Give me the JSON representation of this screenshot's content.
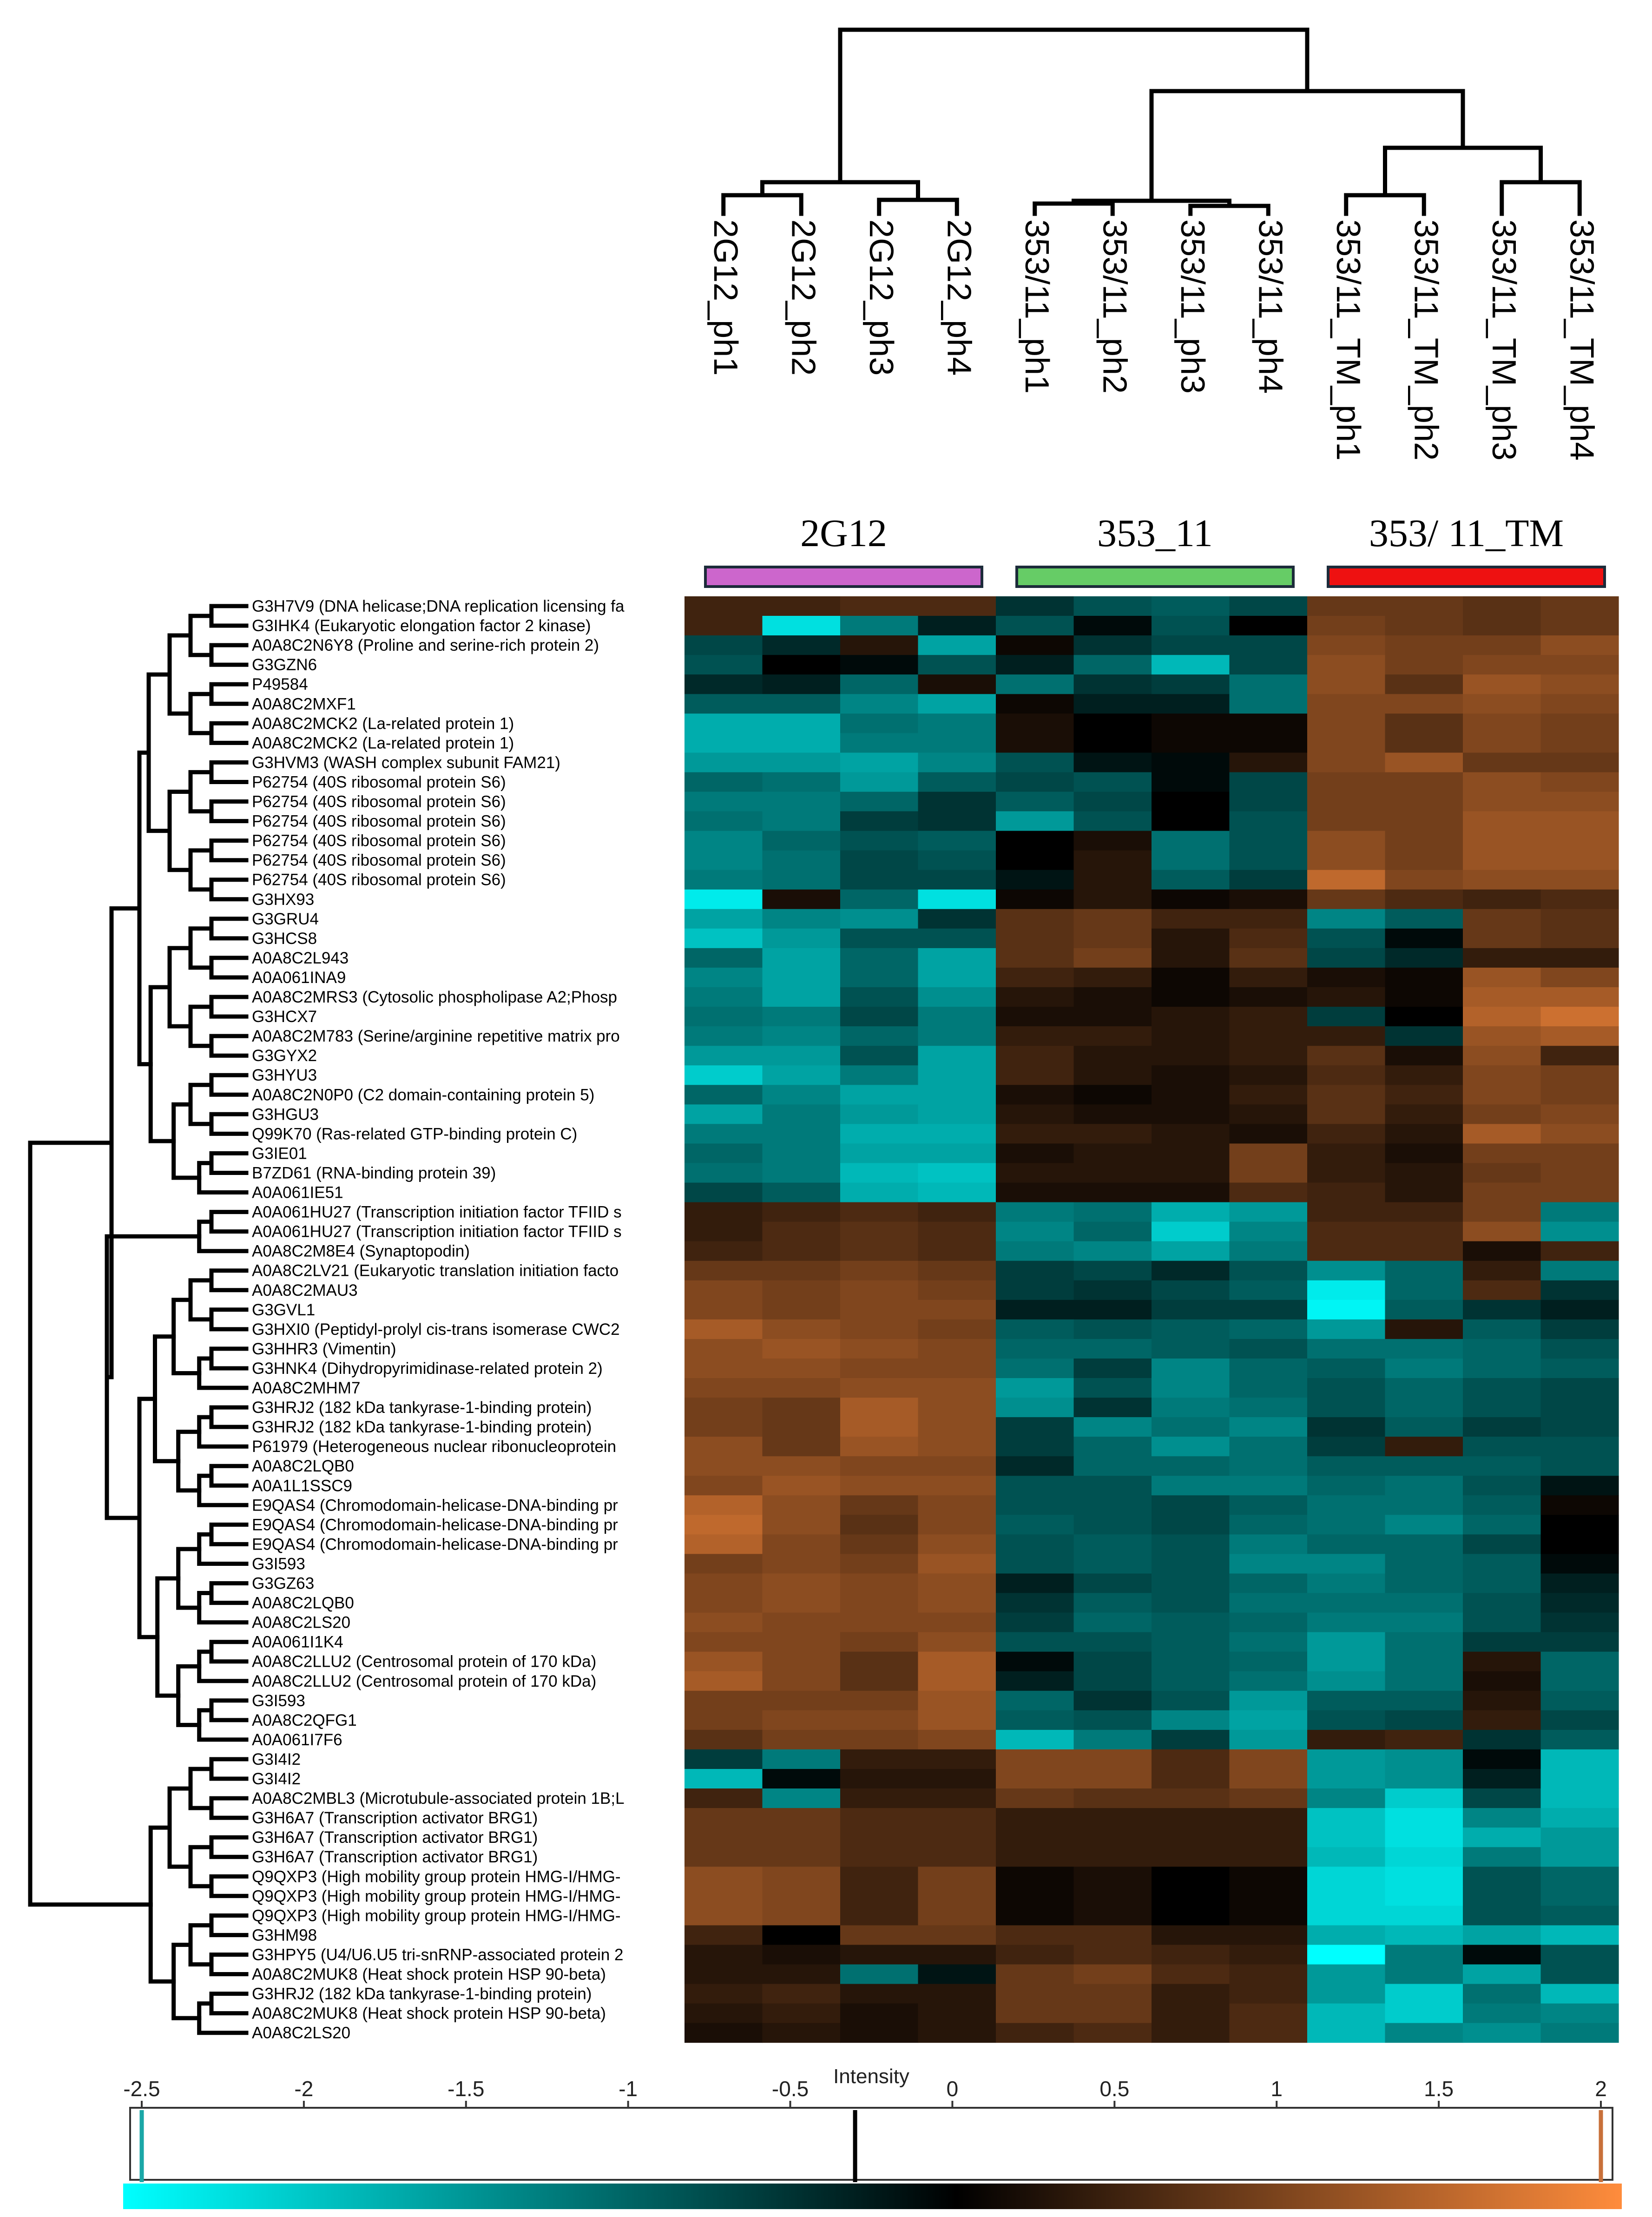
{
  "chart_data": {
    "type": "heatmap",
    "columns": [
      "2G12_ph1",
      "2G12_ph2",
      "2G12_ph3",
      "2G12_ph4",
      "353/11_ph1",
      "353/11_ph2",
      "353/11_ph3",
      "353/11_ph4",
      "353/11_TM_ph1",
      "353/11_TM_ph2",
      "353/11_TM_ph3",
      "353/11_TM_ph4"
    ],
    "groups": [
      {
        "label": "2G12",
        "color": "#cc66cc",
        "span": [
          0,
          3
        ]
      },
      {
        "label": "353_11",
        "color": "#66cc66",
        "span": [
          4,
          7
        ]
      },
      {
        "label": "353/ 11_TM",
        "color": "#ee1111",
        "span": [
          8,
          11
        ]
      }
    ],
    "rows": [
      "G3H7V9 (DNA helicase;DNA replication licensing fa",
      "G3IHK4 (Eukaryotic elongation factor 2 kinase)",
      "A0A8C2N6Y8 (Proline and serine-rich protein 2)",
      "G3GZN6",
      "P49584",
      "A0A8C2MXF1",
      "A0A8C2MCK2 (La-related protein 1)",
      "A0A8C2MCK2 (La-related protein 1)",
      "G3HVM3 (WASH complex subunit FAM21)",
      "P62754 (40S ribosomal protein S6)",
      "P62754 (40S ribosomal protein S6)",
      "P62754 (40S ribosomal protein S6)",
      "P62754 (40S ribosomal protein S6)",
      "P62754 (40S ribosomal protein S6)",
      "P62754 (40S ribosomal protein S6)",
      "G3HX93",
      "G3GRU4",
      "G3HCS8",
      "A0A8C2L943",
      "A0A061INA9",
      "A0A8C2MRS3 (Cytosolic phospholipase A2;Phosp",
      "G3HCX7",
      "A0A8C2M783 (Serine/arginine repetitive matrix pro",
      "G3GYX2",
      "G3HYU3",
      "A0A8C2N0P0 (C2 domain-containing protein 5)",
      "G3HGU3",
      "Q99K70 (Ras-related GTP-binding protein C)",
      "G3IE01",
      "B7ZD61 (RNA-binding protein 39)",
      "A0A061IE51",
      "A0A061HU27 (Transcription initiation factor TFIID s",
      "A0A061HU27 (Transcription initiation factor TFIID s",
      "A0A8C2M8E4 (Synaptopodin)",
      "A0A8C2LV21 (Eukaryotic translation initiation facto",
      "A0A8C2MAU3",
      "G3GVL1",
      "G3HXI0 (Peptidyl-prolyl cis-trans isomerase CWC2",
      "G3HHR3 (Vimentin)",
      "G3HNK4 (Dihydropyrimidinase-related protein 2)",
      "A0A8C2MHM7",
      "G3HRJ2 (182 kDa tankyrase-1-binding protein)",
      "G3HRJ2 (182 kDa tankyrase-1-binding protein)",
      "P61979 (Heterogeneous nuclear ribonucleoprotein",
      "A0A8C2LQB0",
      "A0A1L1SSC9",
      "E9QAS4 (Chromodomain-helicase-DNA-binding pr",
      "E9QAS4 (Chromodomain-helicase-DNA-binding pr",
      "E9QAS4 (Chromodomain-helicase-DNA-binding pr",
      "G3I593",
      "G3GZ63",
      "A0A8C2LQB0",
      "A0A8C2LS20",
      "A0A061I1K4",
      "A0A8C2LLU2 (Centrosomal protein of 170 kDa)",
      "A0A8C2LLU2 (Centrosomal protein of 170 kDa)",
      "G3I593",
      "A0A8C2QFG1",
      "A0A061I7F6",
      "G3I4I2",
      "G3I4I2",
      "A0A8C2MBL3 (Microtubule-associated protein 1B;L",
      "G3H6A7 (Transcription activator BRG1)",
      "G3H6A7 (Transcription activator BRG1)",
      "G3H6A7 (Transcription activator BRG1)",
      "Q9QXP3 (High mobility group protein HMG-I/HMG-",
      "Q9QXP3 (High mobility group protein HMG-I/HMG-",
      "Q9QXP3 (High mobility group protein HMG-I/HMG-",
      "G3HM98",
      "G3HPY5 (U4/U6.U5 tri-snRNP-associated protein 2",
      "A0A8C2MUK8 (Heat shock protein HSP 90-beta)",
      "G3HRJ2 (182 kDa tankyrase-1-binding protein)",
      "A0A8C2MUK8 (Heat shock protein HSP 90-beta)",
      "A0A8C2LS20"
    ],
    "values": [
      [
        0.5,
        0.5,
        0.6,
        0.6,
        -0.5,
        -0.8,
        -0.9,
        -0.7,
        0.8,
        0.8,
        0.7,
        0.8
      ],
      [
        0.5,
        -2.2,
        -1.2,
        -0.3,
        -0.8,
        -0.1,
        -0.8,
        0.0,
        0.9,
        0.8,
        0.7,
        0.8
      ],
      [
        -0.7,
        -0.4,
        0.3,
        -1.6,
        0.1,
        -0.5,
        -0.7,
        -0.7,
        1.0,
        0.9,
        0.9,
        1.1
      ],
      [
        -0.8,
        0.0,
        -0.1,
        -0.8,
        -0.3,
        -1.0,
        -1.8,
        -0.7,
        1.1,
        0.9,
        1.0,
        1.0
      ],
      [
        -0.4,
        -0.3,
        -1.0,
        0.2,
        -1.1,
        -0.5,
        -0.6,
        -1.1,
        1.1,
        0.7,
        1.2,
        1.1
      ],
      [
        -0.9,
        -0.9,
        -1.3,
        -1.6,
        0.1,
        -0.3,
        -0.3,
        -1.1,
        1.0,
        1.0,
        1.1,
        1.0
      ],
      [
        -1.7,
        -1.7,
        -1.1,
        -1.2,
        0.2,
        0.0,
        0.1,
        0.1,
        1.0,
        0.7,
        1.0,
        0.9
      ],
      [
        -1.7,
        -1.7,
        -1.2,
        -1.2,
        0.2,
        0.0,
        0.1,
        0.1,
        1.0,
        0.7,
        1.0,
        0.9
      ],
      [
        -1.5,
        -1.5,
        -1.6,
        -1.3,
        -0.8,
        -0.2,
        -0.1,
        0.3,
        1.0,
        1.2,
        0.8,
        0.8
      ],
      [
        -1.0,
        -1.1,
        -1.5,
        -0.9,
        -0.7,
        -0.8,
        -0.1,
        -0.7,
        0.9,
        0.9,
        1.1,
        1.0
      ],
      [
        -1.2,
        -1.2,
        -1.0,
        -0.5,
        -0.9,
        -0.7,
        0.0,
        -0.7,
        0.9,
        0.9,
        1.1,
        1.1
      ],
      [
        -1.1,
        -1.2,
        -0.6,
        -0.5,
        -1.5,
        -0.8,
        0.0,
        -0.8,
        0.9,
        0.9,
        1.2,
        1.2
      ],
      [
        -1.3,
        -1.0,
        -0.8,
        -0.9,
        0.0,
        0.2,
        -1.1,
        -0.8,
        1.1,
        0.9,
        1.2,
        1.2
      ],
      [
        -1.3,
        -1.1,
        -0.7,
        -0.8,
        0.0,
        0.3,
        -1.1,
        -0.8,
        1.1,
        0.9,
        1.2,
        1.2
      ],
      [
        -1.2,
        -1.1,
        -0.7,
        -0.7,
        -0.2,
        0.3,
        -0.9,
        -0.6,
        1.5,
        1.0,
        1.1,
        1.1
      ],
      [
        -2.3,
        0.2,
        -1.0,
        -2.2,
        0.1,
        0.3,
        0.1,
        0.2,
        0.8,
        0.6,
        0.5,
        0.6
      ],
      [
        -1.6,
        -1.3,
        -1.4,
        -0.5,
        0.7,
        0.8,
        0.5,
        0.5,
        -1.3,
        -0.9,
        0.8,
        0.7
      ],
      [
        -1.9,
        -1.5,
        -0.8,
        -0.8,
        0.7,
        0.8,
        0.3,
        0.6,
        -0.8,
        -0.1,
        0.8,
        0.7
      ],
      [
        -1.0,
        -1.6,
        -1.0,
        -1.6,
        0.7,
        0.9,
        0.3,
        0.7,
        -0.7,
        -0.4,
        0.4,
        0.4
      ],
      [
        -1.3,
        -1.6,
        -1.0,
        -1.6,
        0.5,
        0.4,
        0.1,
        0.4,
        0.2,
        0.1,
        1.2,
        1.0
      ],
      [
        -1.2,
        -1.6,
        -0.8,
        -1.4,
        0.3,
        0.2,
        0.1,
        0.2,
        0.3,
        0.1,
        1.3,
        1.3
      ],
      [
        -1.1,
        -1.2,
        -0.7,
        -1.2,
        0.2,
        0.2,
        0.3,
        0.4,
        -0.6,
        0.0,
        1.4,
        1.6
      ],
      [
        -1.2,
        -1.3,
        -1.0,
        -1.2,
        0.4,
        0.4,
        0.3,
        0.4,
        0.4,
        -0.5,
        1.2,
        1.3
      ],
      [
        -1.5,
        -1.5,
        -0.8,
        -1.6,
        0.5,
        0.3,
        0.3,
        0.4,
        0.7,
        0.2,
        1.1,
        0.5
      ],
      [
        -2.0,
        -1.6,
        -1.2,
        -1.6,
        0.5,
        0.3,
        0.2,
        0.3,
        0.6,
        0.4,
        1.0,
        0.9
      ],
      [
        -1.0,
        -1.3,
        -1.6,
        -1.6,
        0.2,
        0.1,
        0.2,
        0.4,
        0.7,
        0.5,
        1.0,
        0.9
      ],
      [
        -1.6,
        -1.2,
        -1.5,
        -1.6,
        0.3,
        0.2,
        0.2,
        0.3,
        0.7,
        0.4,
        0.9,
        1.0
      ],
      [
        -1.2,
        -1.2,
        -1.7,
        -1.7,
        0.4,
        0.4,
        0.3,
        0.2,
        0.5,
        0.3,
        1.3,
        1.1
      ],
      [
        -1.0,
        -1.2,
        -1.6,
        -1.6,
        0.2,
        0.3,
        0.3,
        0.9,
        0.4,
        0.2,
        0.9,
        0.9
      ],
      [
        -1.1,
        -1.2,
        -1.8,
        -1.9,
        0.3,
        0.3,
        0.3,
        0.9,
        0.4,
        0.3,
        0.8,
        0.9
      ],
      [
        -0.7,
        -0.9,
        -1.7,
        -1.8,
        0.2,
        0.2,
        0.2,
        0.6,
        0.5,
        0.3,
        0.9,
        0.9
      ],
      [
        0.4,
        0.5,
        0.6,
        0.5,
        -1.2,
        -1.1,
        -1.7,
        -1.5,
        0.5,
        0.5,
        0.9,
        -1.2
      ],
      [
        0.4,
        0.6,
        0.7,
        0.6,
        -1.3,
        -1.0,
        -2.0,
        -1.3,
        0.6,
        0.6,
        1.1,
        -1.4
      ],
      [
        0.5,
        0.6,
        0.7,
        0.6,
        -1.2,
        -1.3,
        -1.6,
        -1.2,
        0.6,
        0.6,
        0.2,
        0.5
      ],
      [
        0.8,
        0.8,
        0.9,
        0.8,
        -0.6,
        -0.7,
        -0.4,
        -0.8,
        -1.4,
        -1.0,
        0.4,
        -1.2
      ],
      [
        1.0,
        0.9,
        1.0,
        0.9,
        -0.6,
        -0.5,
        -0.7,
        -0.9,
        -2.3,
        -1.0,
        0.6,
        -0.5
      ],
      [
        1.0,
        0.9,
        1.0,
        1.0,
        -0.3,
        -0.3,
        -0.6,
        -0.6,
        -2.4,
        -0.9,
        -0.5,
        -0.3
      ],
      [
        1.3,
        1.1,
        1.0,
        0.9,
        -0.9,
        -0.8,
        -0.9,
        -1.0,
        -1.5,
        0.3,
        -0.9,
        -0.6
      ],
      [
        1.1,
        1.2,
        1.1,
        1.0,
        -1.0,
        -1.0,
        -0.9,
        -0.8,
        -1.1,
        -1.1,
        -1.0,
        -0.8
      ],
      [
        1.1,
        1.1,
        1.0,
        1.0,
        -1.1,
        -0.6,
        -1.3,
        -1.0,
        -0.9,
        -1.2,
        -1.0,
        -0.9
      ],
      [
        1.0,
        1.0,
        1.1,
        1.1,
        -1.5,
        -0.8,
        -1.3,
        -1.0,
        -0.8,
        -1.0,
        -0.8,
        -0.7
      ],
      [
        0.9,
        0.8,
        1.3,
        1.1,
        -1.4,
        -0.5,
        -1.2,
        -1.1,
        -0.8,
        -1.0,
        -0.8,
        -0.7
      ],
      [
        0.9,
        0.8,
        1.3,
        1.1,
        -0.6,
        -1.3,
        -1.1,
        -1.3,
        -0.5,
        -0.9,
        -0.6,
        -0.7
      ],
      [
        1.1,
        0.8,
        1.2,
        1.1,
        -0.6,
        -1.0,
        -1.4,
        -1.1,
        -0.6,
        0.4,
        -0.8,
        -0.8
      ],
      [
        1.1,
        1.1,
        1.0,
        1.0,
        -0.4,
        -1.0,
        -1.0,
        -1.1,
        -0.9,
        -0.9,
        -0.9,
        -0.8
      ],
      [
        1.0,
        1.2,
        1.1,
        1.1,
        -0.8,
        -0.8,
        -1.2,
        -1.2,
        -1.0,
        -1.1,
        -0.8,
        -0.2
      ],
      [
        1.4,
        1.1,
        0.8,
        1.0,
        -0.8,
        -0.8,
        -0.7,
        -0.9,
        -1.1,
        -1.1,
        -0.9,
        0.1
      ],
      [
        1.5,
        1.1,
        0.7,
        1.0,
        -0.9,
        -0.8,
        -0.7,
        -1.0,
        -1.1,
        -1.3,
        -1.0,
        0.0
      ],
      [
        1.4,
        1.0,
        0.8,
        1.1,
        -0.8,
        -0.9,
        -0.8,
        -1.2,
        -1.0,
        -1.0,
        -0.7,
        0.0
      ],
      [
        0.9,
        1.0,
        0.9,
        1.2,
        -0.8,
        -0.9,
        -0.8,
        -1.3,
        -1.3,
        -1.0,
        -0.9,
        -0.1
      ],
      [
        1.0,
        1.1,
        1.0,
        1.1,
        -0.3,
        -0.7,
        -0.8,
        -1.0,
        -1.2,
        -1.0,
        -0.9,
        -0.3
      ],
      [
        1.0,
        1.1,
        1.0,
        1.1,
        -0.5,
        -0.9,
        -0.8,
        -1.1,
        -1.1,
        -1.1,
        -0.8,
        -0.4
      ],
      [
        1.1,
        1.0,
        1.0,
        1.0,
        -0.6,
        -1.0,
        -0.9,
        -1.0,
        -1.2,
        -1.2,
        -0.8,
        -0.5
      ],
      [
        1.0,
        1.0,
        0.9,
        1.1,
        -0.8,
        -0.8,
        -0.9,
        -1.1,
        -1.5,
        -1.1,
        -0.6,
        -0.6
      ],
      [
        1.2,
        1.0,
        0.7,
        1.3,
        -0.1,
        -0.7,
        -0.9,
        -1.0,
        -1.5,
        -1.1,
        0.3,
        -1.0
      ],
      [
        1.3,
        1.0,
        0.7,
        1.3,
        -0.3,
        -0.7,
        -0.9,
        -1.1,
        -1.4,
        -1.1,
        0.2,
        -1.0
      ],
      [
        0.9,
        0.9,
        0.9,
        1.2,
        -1.0,
        -0.5,
        -0.8,
        -1.5,
        -0.9,
        -0.9,
        0.3,
        -0.9
      ],
      [
        0.9,
        1.0,
        1.0,
        1.2,
        -0.9,
        -0.8,
        -1.3,
        -1.6,
        -0.8,
        -0.7,
        0.4,
        -0.7
      ],
      [
        0.7,
        0.9,
        0.9,
        1.0,
        -1.8,
        -1.2,
        -0.6,
        -1.5,
        0.4,
        0.5,
        -0.5,
        -0.9
      ],
      [
        -0.6,
        -1.2,
        0.4,
        0.4,
        1.0,
        1.0,
        0.6,
        1.0,
        -1.5,
        -1.4,
        -0.1,
        -1.8
      ],
      [
        -1.8,
        -0.1,
        0.3,
        0.3,
        1.0,
        1.0,
        0.6,
        1.0,
        -1.5,
        -1.4,
        -0.3,
        -1.8
      ],
      [
        0.5,
        -1.3,
        0.4,
        0.4,
        0.8,
        0.7,
        0.7,
        0.8,
        -1.3,
        -2.0,
        -0.7,
        -1.8
      ],
      [
        0.8,
        0.8,
        0.6,
        0.6,
        0.4,
        0.4,
        0.4,
        0.4,
        -1.9,
        -2.2,
        -1.3,
        -1.7
      ],
      [
        0.8,
        0.8,
        0.6,
        0.6,
        0.4,
        0.4,
        0.4,
        0.4,
        -1.9,
        -2.2,
        -1.7,
        -1.5
      ],
      [
        0.8,
        0.8,
        0.6,
        0.6,
        0.4,
        0.4,
        0.4,
        0.4,
        -1.8,
        -2.1,
        -1.2,
        -1.5
      ],
      [
        1.1,
        1.0,
        0.5,
        0.9,
        0.1,
        0.2,
        0.0,
        0.1,
        -2.1,
        -2.2,
        -0.8,
        -1.0
      ],
      [
        1.1,
        1.0,
        0.5,
        0.9,
        0.1,
        0.2,
        0.0,
        0.1,
        -2.1,
        -2.2,
        -0.8,
        -1.0
      ],
      [
        1.1,
        1.0,
        0.5,
        0.9,
        0.1,
        0.2,
        0.0,
        0.1,
        -2.1,
        -2.1,
        -0.8,
        -0.9
      ],
      [
        0.5,
        0.0,
        0.8,
        0.8,
        0.6,
        0.6,
        0.3,
        0.3,
        -1.7,
        -1.8,
        -1.6,
        -1.8
      ],
      [
        0.3,
        0.2,
        0.3,
        0.3,
        0.5,
        0.6,
        0.5,
        0.4,
        -2.6,
        -1.2,
        -0.1,
        -0.8
      ],
      [
        0.3,
        0.3,
        -1.1,
        -0.2,
        0.8,
        0.9,
        0.6,
        0.5,
        -1.5,
        -1.2,
        -1.6,
        -0.8
      ],
      [
        0.4,
        0.5,
        0.3,
        0.3,
        0.8,
        0.8,
        0.4,
        0.5,
        -1.5,
        -2.0,
        -1.1,
        -1.8
      ],
      [
        0.3,
        0.4,
        0.2,
        0.3,
        0.8,
        0.8,
        0.4,
        0.6,
        -1.8,
        -2.0,
        -1.2,
        -1.3
      ],
      [
        0.2,
        0.3,
        0.2,
        0.3,
        0.5,
        0.6,
        0.4,
        0.6,
        -1.8,
        -1.3,
        -1.4,
        -1.2
      ]
    ],
    "colorbar": {
      "label": "Intensity",
      "ticks": [
        "-2.5",
        "-2",
        "-1.5",
        "-1",
        "-0.5",
        "0",
        "0.5",
        "1",
        "1.5",
        "2"
      ],
      "range": [
        -2.5,
        2
      ],
      "colors": {
        "low": "#00ffff",
        "mid": "#000000",
        "high": "#ff8c3c"
      }
    }
  }
}
